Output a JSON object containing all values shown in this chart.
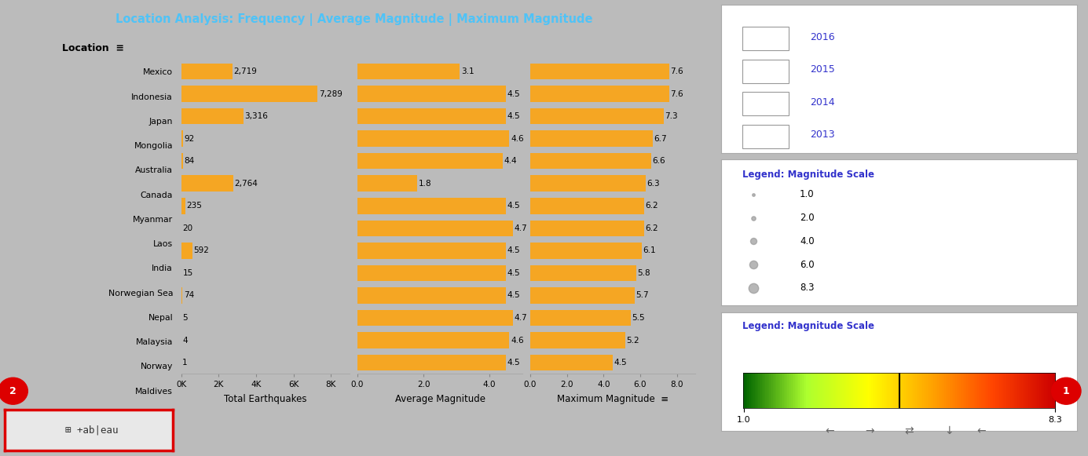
{
  "title": "Location Analysis: Frequency | Average Magnitude | Maximum Magnitude",
  "locations": [
    "Mexico",
    "Indonesia",
    "Japan",
    "Mongolia",
    "Australia",
    "Canada",
    "Myanmar",
    "Laos",
    "India",
    "Norwegian Sea",
    "Nepal",
    "Malaysia",
    "Norway",
    "Maldives"
  ],
  "total_earthquakes": [
    2719,
    7289,
    3316,
    92,
    84,
    2764,
    235,
    20,
    592,
    15,
    74,
    5,
    4,
    1
  ],
  "avg_magnitude": [
    3.1,
    4.5,
    4.5,
    4.6,
    4.4,
    1.8,
    4.5,
    4.7,
    4.5,
    4.5,
    4.5,
    4.7,
    4.6,
    4.5
  ],
  "max_magnitude": [
    7.6,
    7.6,
    7.3,
    6.7,
    6.6,
    6.3,
    6.2,
    6.2,
    6.1,
    5.8,
    5.7,
    5.5,
    5.2,
    4.5
  ],
  "bar_color": "#F5A623",
  "bg_color_main": "#ffffff",
  "bg_color_header": "#1a1a1a",
  "title_color": "#4fc3f7",
  "header_row_bg": "#cccccc",
  "row_bg_alt": "#eeeeee",
  "years": [
    "2016",
    "2015",
    "2014",
    "2013"
  ],
  "legend_magnitude_sizes": [
    1.0,
    2.0,
    4.0,
    6.0,
    8.3
  ],
  "colorbar_min": 1.0,
  "colorbar_max": 8.3,
  "outer_bg": "#bbbbbb",
  "panel_bg": "#dddddd",
  "bottom_bar_bg": "#c0c0c0",
  "white_box_bg": "#ffffff",
  "box_border": "#aaaaaa",
  "year_text_color": "#3333cc",
  "legend_title_color": "#3333cc",
  "bubble_color": "#999999",
  "nav_icon_color": "#666666"
}
